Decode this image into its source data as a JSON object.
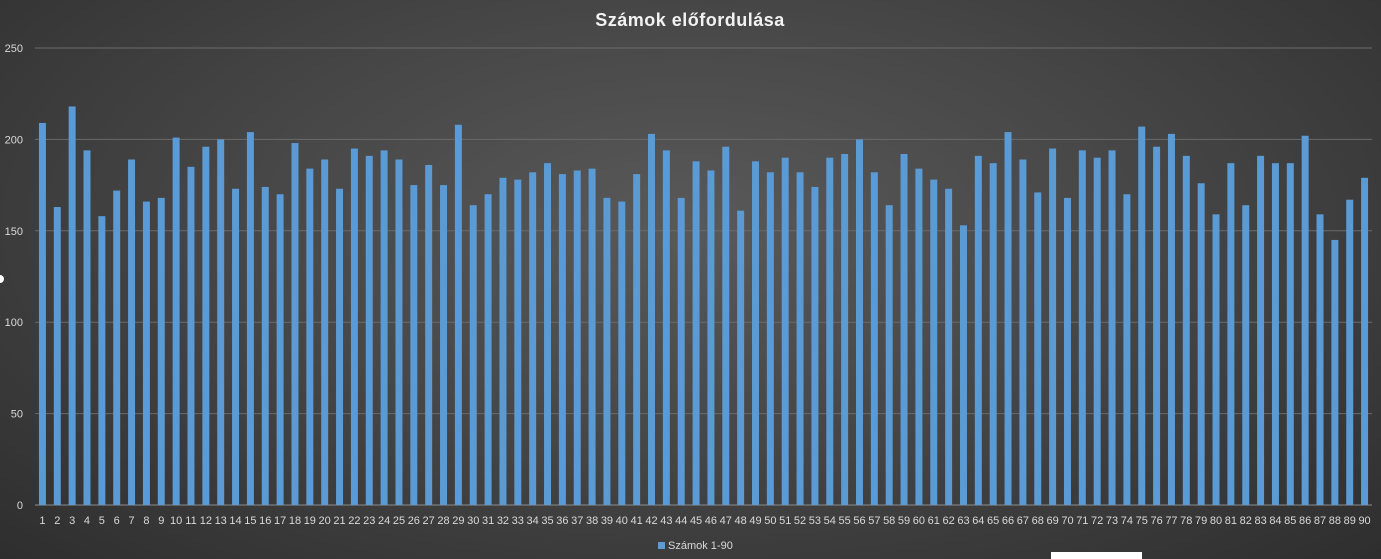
{
  "chart_data": {
    "type": "bar",
    "title": "Számok előfordulása",
    "xlabel": "",
    "ylabel": "",
    "ylim": [
      0,
      250
    ],
    "yticks": [
      0,
      50,
      100,
      150,
      200,
      250
    ],
    "grid": true,
    "legend_position": "bottom",
    "categories": [
      "1",
      "2",
      "3",
      "4",
      "5",
      "6",
      "7",
      "8",
      "9",
      "10",
      "11",
      "12",
      "13",
      "14",
      "15",
      "16",
      "17",
      "18",
      "19",
      "20",
      "21",
      "22",
      "23",
      "24",
      "25",
      "26",
      "27",
      "28",
      "29",
      "30",
      "31",
      "32",
      "33",
      "34",
      "35",
      "36",
      "37",
      "38",
      "39",
      "40",
      "41",
      "42",
      "43",
      "44",
      "45",
      "46",
      "47",
      "48",
      "49",
      "50",
      "51",
      "52",
      "53",
      "54",
      "55",
      "56",
      "57",
      "58",
      "59",
      "60",
      "61",
      "62",
      "63",
      "64",
      "65",
      "66",
      "67",
      "68",
      "69",
      "70",
      "71",
      "72",
      "73",
      "74",
      "75",
      "76",
      "77",
      "78",
      "79",
      "80",
      "81",
      "82",
      "83",
      "84",
      "85",
      "86",
      "87",
      "88",
      "89",
      "90"
    ],
    "series": [
      {
        "name": "Számok 1-90",
        "color": "#5b9bd5",
        "values": [
          209,
          163,
          218,
          194,
          158,
          172,
          189,
          166,
          168,
          201,
          185,
          196,
          200,
          173,
          204,
          174,
          170,
          198,
          184,
          189,
          173,
          195,
          191,
          194,
          189,
          175,
          186,
          175,
          208,
          164,
          170,
          179,
          178,
          182,
          187,
          181,
          183,
          184,
          168,
          166,
          181,
          203,
          194,
          168,
          188,
          183,
          196,
          161,
          188,
          182,
          190,
          182,
          174,
          190,
          192,
          200,
          182,
          164,
          192,
          184,
          178,
          173,
          153,
          191,
          187,
          204,
          189,
          171,
          195,
          168,
          194,
          190,
          194,
          170,
          207,
          196,
          203,
          191,
          176,
          159,
          187,
          164,
          191,
          187,
          187,
          202,
          159,
          145,
          167,
          179
        ]
      }
    ]
  }
}
